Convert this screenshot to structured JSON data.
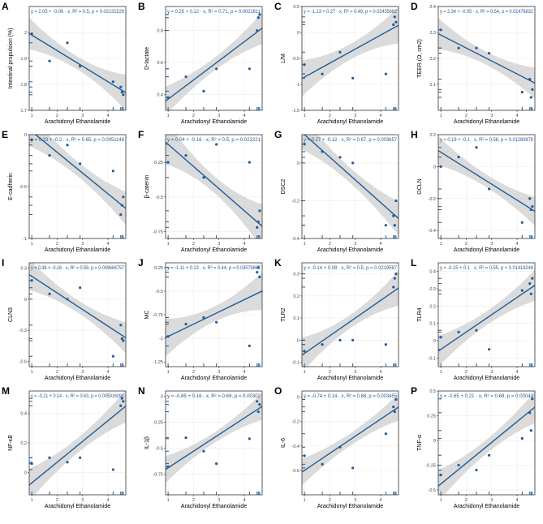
{
  "figure": {
    "xlabel": "Arachidonyl Ethanolamide"
  },
  "colors": {
    "line": "#1f5c99",
    "point": "#1f5c99",
    "band": "#cfcfcf",
    "panel_border": "#333333",
    "grid": "#ececec",
    "equation_text": "#1f5c99"
  },
  "chart_data": [
    {
      "type": "scatter",
      "letter": "A",
      "ylabel": "Intestinal propulsion (%)",
      "equation": "y = 2.05 + -0.06 · x,  R² = 0.5,  p = 0.02131529",
      "xlim": [
        0.9,
        4.7
      ],
      "ylim": [
        1.7,
        2.1
      ],
      "yticks": [
        1.7,
        1.8,
        1.9,
        2.0
      ],
      "fit": {
        "intercept": 2.05,
        "slope": -0.06
      },
      "band_halfwidth": [
        0.06,
        0.025,
        0.07
      ],
      "x": [
        1.0,
        1.7,
        2.4,
        2.9,
        4.2,
        4.5,
        4.55,
        4.6
      ],
      "y": [
        1.995,
        1.89,
        1.96,
        1.87,
        1.81,
        1.79,
        1.77,
        1.76
      ]
    },
    {
      "type": "scatter",
      "letter": "B",
      "ylabel": "D-lactate",
      "equation": "y = 0.25 + 0.12 · x,  R² = 0.71,  p = 0.0022611",
      "xlim": [
        0.9,
        4.7
      ],
      "ylim": [
        0.3,
        0.95
      ],
      "yticks": [
        0.4,
        0.6,
        0.8
      ],
      "fit": {
        "intercept": 0.25,
        "slope": 0.12
      },
      "band_halfwidth": [
        0.09,
        0.04,
        0.1
      ],
      "x": [
        1.0,
        1.7,
        2.4,
        2.9,
        4.2,
        4.5,
        4.55,
        4.6
      ],
      "y": [
        0.38,
        0.51,
        0.42,
        0.56,
        0.56,
        0.8,
        0.88,
        0.9
      ]
    },
    {
      "type": "scatter",
      "letter": "C",
      "ylabel": "L/M",
      "equation": "y = -1.13 + 0.27 · x,  R² = 0.49,  p = 0.02435682",
      "xlim": [
        0.9,
        4.7
      ],
      "ylim": [
        -1.5,
        0.5
      ],
      "yticks": [
        -1.5,
        -1.0,
        -0.5,
        0.0,
        0.5
      ],
      "fit": {
        "intercept": -1.13,
        "slope": 0.27
      },
      "band_halfwidth": [
        0.35,
        0.15,
        0.35
      ],
      "x": [
        1.0,
        1.7,
        2.4,
        2.9,
        4.2,
        4.5,
        4.55,
        4.6
      ],
      "y": [
        -0.62,
        -0.8,
        -0.38,
        -0.88,
        -0.8,
        0.15,
        0.3,
        0.2
      ]
    },
    {
      "type": "scatter",
      "letter": "D",
      "ylabel": "TEER (Ω, cm2)",
      "equation": "y = 2.34 + -0.05 · x,  R² = 0.54,  p = 0.01476832",
      "xlim": [
        0.9,
        4.7
      ],
      "ylim": [
        2.0,
        2.4
      ],
      "yticks": [
        2.1,
        2.2,
        2.3,
        2.4
      ],
      "fit": {
        "intercept": 2.34,
        "slope": -0.05
      },
      "band_halfwidth": [
        0.06,
        0.025,
        0.06
      ],
      "x": [
        1.0,
        1.7,
        2.4,
        2.9,
        4.2,
        4.5,
        4.55,
        4.6
      ],
      "y": [
        2.31,
        2.24,
        2.24,
        2.22,
        2.07,
        2.12,
        2.05,
        2.08
      ]
    },
    {
      "type": "scatter",
      "letter": "E",
      "ylabel": "E-cadherin",
      "equation": "y = 0.23 + -0.2 · x,  R² = 0.65,  p = 0.0051146",
      "xlim": [
        0.9,
        4.7
      ],
      "ylim": [
        -1.0,
        0.0
      ],
      "yticks": [
        -1.0,
        -0.5,
        0.0
      ],
      "fit": {
        "intercept": 0.23,
        "slope": -0.2
      },
      "band_halfwidth": [
        0.16,
        0.07,
        0.16
      ],
      "x": [
        1.0,
        1.7,
        2.4,
        2.9,
        4.2,
        4.5,
        4.55,
        4.6
      ],
      "y": [
        -0.05,
        -0.2,
        -0.1,
        -0.28,
        -0.35,
        -0.77,
        -0.68,
        -0.6
      ]
    },
    {
      "type": "scatter",
      "letter": "F",
      "ylabel": "β-catenin",
      "equation": "y = 0.04 + -0.16 · x,  R² = 0.5,  p = 0.022221",
      "xlim": [
        0.9,
        4.7
      ],
      "ylim": [
        -0.8,
        -0.05
      ],
      "yticks": [
        -0.75,
        -0.5,
        -0.25
      ],
      "fit": {
        "intercept": 0.04,
        "slope": -0.16
      },
      "band_halfwidth": [
        0.16,
        0.06,
        0.16
      ],
      "x": [
        1.0,
        1.7,
        2.4,
        2.9,
        4.2,
        4.5,
        4.55,
        4.6
      ],
      "y": [
        -0.25,
        -0.2,
        -0.36,
        -0.12,
        -0.25,
        -0.72,
        -0.68,
        -0.6
      ]
    },
    {
      "type": "scatter",
      "letter": "G",
      "ylabel": "DSC2",
      "equation": "y = 0.27 + -0.12 · x,  R² = 0.67,  p = 0.003657",
      "xlim": [
        0.9,
        4.7
      ],
      "ylim": [
        -0.4,
        0.15
      ],
      "yticks": [
        -0.4,
        -0.2,
        0.0
      ],
      "fit": {
        "intercept": 0.27,
        "slope": -0.12
      },
      "band_halfwidth": [
        0.09,
        0.04,
        0.09
      ],
      "x": [
        1.0,
        1.7,
        2.4,
        2.9,
        4.2,
        4.5,
        4.55,
        4.6
      ],
      "y": [
        0.1,
        0.06,
        0.03,
        0.0,
        -0.33,
        -0.28,
        -0.33,
        -0.2
      ]
    },
    {
      "type": "scatter",
      "letter": "H",
      "ylabel": "OCLN",
      "equation": "y = 0.19 + -0.1 · x,  R² = 0.56,  p = 0.01280878",
      "xlim": [
        0.9,
        4.7
      ],
      "ylim": [
        -0.45,
        0.2
      ],
      "yticks": [
        -0.4,
        -0.2,
        0.0,
        0.2
      ],
      "fit": {
        "intercept": 0.19,
        "slope": -0.1
      },
      "band_halfwidth": [
        0.09,
        0.04,
        0.09
      ],
      "x": [
        1.0,
        1.7,
        2.4,
        2.9,
        4.2,
        4.5,
        4.55,
        4.6
      ],
      "y": [
        0.0,
        0.06,
        0.12,
        -0.14,
        -0.35,
        -0.2,
        -0.27,
        -0.25
      ]
    },
    {
      "type": "scatter",
      "letter": "I",
      "ylabel": "CLN3",
      "equation": "y = 0.38 + -0.16 · x,  R² = 0.59,  p = 0.009684757",
      "xlim": [
        0.9,
        4.7
      ],
      "ylim": [
        -0.65,
        0.35
      ],
      "yticks": [
        -0.6,
        -0.3,
        0.0,
        0.3
      ],
      "fit": {
        "intercept": 0.38,
        "slope": -0.16
      },
      "band_halfwidth": [
        0.15,
        0.06,
        0.15
      ],
      "x": [
        1.0,
        1.7,
        2.4,
        2.9,
        4.2,
        4.5,
        4.55,
        4.6
      ],
      "y": [
        0.18,
        0.05,
        0.0,
        0.11,
        -0.55,
        -0.25,
        -0.38,
        -0.4
      ]
    },
    {
      "type": "scatter",
      "letter": "J",
      "ylabel": "MC",
      "equation": "y = -1.11 + 0.13 · x,  R² = 0.44,  p = 0.03579887",
      "xlim": [
        0.9,
        4.7
      ],
      "ylim": [
        -1.3,
        -0.2
      ],
      "yticks": [
        -1.25,
        -1.0,
        -0.75,
        -0.5,
        -0.25
      ],
      "fit": {
        "intercept": -1.11,
        "slope": 0.13
      },
      "band_halfwidth": [
        0.2,
        0.08,
        0.2
      ],
      "x": [
        1.0,
        1.7,
        2.4,
        2.9,
        4.2,
        4.5,
        4.55,
        4.6
      ],
      "y": [
        -0.98,
        -0.85,
        -0.78,
        -0.83,
        -1.08,
        -0.3,
        -0.25,
        -0.35
      ]
    },
    {
      "type": "scatter",
      "letter": "K",
      "ylabel": "TLR2",
      "equation": "y = -0.14 + 0.08 · x,  R² = 0.5,  p = 0.0219587",
      "xlim": [
        0.9,
        4.7
      ],
      "ylim": [
        -0.12,
        0.35
      ],
      "yticks": [
        -0.1,
        0.0,
        0.1,
        0.2,
        0.3
      ],
      "fit": {
        "intercept": -0.14,
        "slope": 0.08
      },
      "band_halfwidth": [
        0.08,
        0.03,
        0.08
      ],
      "x": [
        1.0,
        1.7,
        2.4,
        2.9,
        4.2,
        4.5,
        4.55,
        4.6
      ],
      "y": [
        -0.05,
        -0.02,
        0.0,
        0.0,
        -0.02,
        0.24,
        0.28,
        0.3
      ]
    },
    {
      "type": "scatter",
      "letter": "L",
      "ylabel": "TLR4",
      "equation": "y = -0.15 + 0.1 · x,  R² = 0.55,  p = 0.01418248",
      "xlim": [
        0.9,
        4.7
      ],
      "ylim": [
        -0.15,
        0.45
      ],
      "yticks": [
        -0.1,
        0.0,
        0.1,
        0.2,
        0.3,
        0.4
      ],
      "fit": {
        "intercept": -0.15,
        "slope": 0.1
      },
      "band_halfwidth": [
        0.09,
        0.04,
        0.09
      ],
      "x": [
        1.0,
        1.7,
        2.4,
        2.9,
        4.2,
        4.5,
        4.55,
        4.6
      ],
      "y": [
        0.02,
        0.05,
        0.06,
        -0.05,
        0.29,
        0.33,
        0.27,
        0.36
      ]
    },
    {
      "type": "scatter",
      "letter": "M",
      "ylabel": "NF-κB",
      "equation": "y = -0.21 + 0.14 · x,  R² = 0.63,  p = 0.005916091",
      "xlim": [
        0.9,
        4.7
      ],
      "ylim": [
        -0.15,
        0.55
      ],
      "yticks": [
        0.0,
        0.2,
        0.4
      ],
      "fit": {
        "intercept": -0.21,
        "slope": 0.14
      },
      "band_halfwidth": [
        0.11,
        0.05,
        0.11
      ],
      "x": [
        1.0,
        1.7,
        2.4,
        2.9,
        4.2,
        4.5,
        4.55,
        4.6
      ],
      "y": [
        0.06,
        0.1,
        0.07,
        0.1,
        0.02,
        0.45,
        0.5,
        0.48
      ]
    },
    {
      "type": "scatter",
      "letter": "N",
      "ylabel": "IL-1β",
      "equation": "y = -0.85 + 0.16 · x,  R² = 0.69,  p = 0.00302",
      "xlim": [
        0.9,
        4.7
      ],
      "ylim": [
        -0.95,
        0.05
      ],
      "yticks": [
        -0.75,
        -0.5,
        -0.25,
        0.0
      ],
      "fit": {
        "intercept": -0.85,
        "slope": 0.16
      },
      "band_halfwidth": [
        0.13,
        0.05,
        0.13
      ],
      "x": [
        1.0,
        1.7,
        2.4,
        2.9,
        4.2,
        4.5,
        4.55,
        4.6
      ],
      "y": [
        -0.68,
        -0.4,
        -0.53,
        -0.65,
        -0.41,
        -0.05,
        -0.15,
        -0.08
      ]
    },
    {
      "type": "scatter",
      "letter": "O",
      "ylabel": "IL-6",
      "equation": "y = -0.74 + 0.14 · x,  R² = 0.68,  p = 0.003455",
      "xlim": [
        0.9,
        4.7
      ],
      "ylim": [
        -0.8,
        0.05
      ],
      "yticks": [
        -0.6,
        -0.4,
        -0.2,
        0.0
      ],
      "fit": {
        "intercept": -0.74,
        "slope": 0.14
      },
      "band_halfwidth": [
        0.11,
        0.05,
        0.11
      ],
      "x": [
        1.0,
        1.7,
        2.4,
        2.9,
        4.2,
        4.5,
        4.55,
        4.6
      ],
      "y": [
        -0.48,
        -0.55,
        -0.41,
        -0.58,
        -0.3,
        -0.08,
        -0.12,
        -0.02
      ]
    },
    {
      "type": "scatter",
      "letter": "P",
      "ylabel": "TNF-α",
      "equation": "y = -0.65 + 0.21 · x,  R² = 0.68,  p = 0.00043",
      "xlim": [
        0.9,
        4.7
      ],
      "ylim": [
        -0.55,
        0.5
      ],
      "yticks": [
        -0.5,
        -0.25,
        0.0,
        0.25,
        0.5
      ],
      "fit": {
        "intercept": -0.65,
        "slope": 0.21
      },
      "band_halfwidth": [
        0.16,
        0.07,
        0.16
      ],
      "x": [
        1.0,
        1.7,
        2.4,
        2.9,
        4.2,
        4.5,
        4.55,
        4.6
      ],
      "y": [
        -0.35,
        -0.25,
        -0.3,
        -0.15,
        0.02,
        0.28,
        0.1,
        0.42
      ]
    }
  ]
}
